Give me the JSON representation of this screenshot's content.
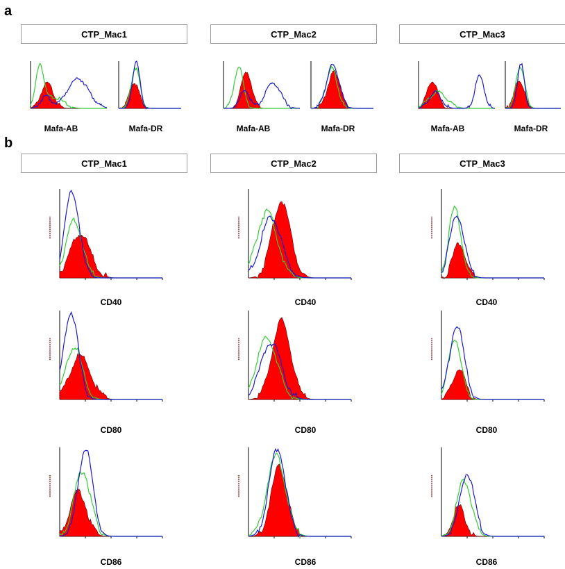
{
  "panels": {
    "a": {
      "letter": "a",
      "headers": [
        "CTP_Mac1",
        "CTP_Mac2",
        "CTP_Mac3"
      ],
      "markers": [
        "Mafa-AB",
        "Mafa-DR"
      ]
    },
    "b": {
      "letter": "b",
      "headers": [
        "CTP_Mac1",
        "CTP_Mac2",
        "CTP_Mac3"
      ],
      "markers": [
        "CD40",
        "CD80",
        "CD86"
      ]
    }
  },
  "colors": {
    "isotype_fill": "#ff0000",
    "green_line": "#33cc33",
    "blue_line": "#1a1acc",
    "axis": "#000000",
    "ylabel": "#8a2a2a"
  },
  "chart_data": [
    {
      "panel": "a",
      "type": "area",
      "x_scale": "log",
      "x_range": [
        0,
        1
      ],
      "plots": [
        {
          "sample": "CTP_Mac1",
          "marker": "Mafa-AB",
          "red": {
            "mu": 0.22,
            "sd": 0.08,
            "amp": 0.55
          },
          "green": [
            {
              "mu": 0.12,
              "sd": 0.05,
              "amp": 0.9
            },
            {
              "mu": 0.3,
              "sd": 0.12,
              "amp": 0.25
            }
          ],
          "blue": [
            {
              "mu": 0.2,
              "sd": 0.07,
              "amp": 0.25
            },
            {
              "mu": 0.62,
              "sd": 0.14,
              "amp": 0.65
            }
          ]
        },
        {
          "sample": "CTP_Mac1",
          "marker": "Mafa-DR",
          "red": {
            "mu": 0.25,
            "sd": 0.08,
            "amp": 0.55
          },
          "green": [
            {
              "mu": 0.27,
              "sd": 0.07,
              "amp": 0.88
            }
          ],
          "blue": [
            {
              "mu": 0.28,
              "sd": 0.06,
              "amp": 1.0
            }
          ]
        },
        {
          "sample": "CTP_Mac2",
          "marker": "Mafa-AB",
          "red": {
            "mu": 0.3,
            "sd": 0.07,
            "amp": 0.8
          },
          "green": [
            {
              "mu": 0.2,
              "sd": 0.06,
              "amp": 0.9
            }
          ],
          "blue": [
            {
              "mu": 0.28,
              "sd": 0.06,
              "amp": 0.4
            },
            {
              "mu": 0.65,
              "sd": 0.1,
              "amp": 0.55
            }
          ]
        },
        {
          "sample": "CTP_Mac2",
          "marker": "Mafa-DR",
          "red": {
            "mu": 0.37,
            "sd": 0.1,
            "amp": 0.8
          },
          "green": [
            {
              "mu": 0.33,
              "sd": 0.09,
              "amp": 0.88
            }
          ],
          "blue": [
            {
              "mu": 0.35,
              "sd": 0.1,
              "amp": 0.95
            }
          ]
        },
        {
          "sample": "CTP_Mac3",
          "marker": "Mafa-AB",
          "red": {
            "mu": 0.18,
            "sd": 0.07,
            "amp": 0.6
          },
          "green": [
            {
              "mu": 0.25,
              "sd": 0.12,
              "amp": 0.35
            }
          ],
          "blue": [
            {
              "mu": 0.22,
              "sd": 0.08,
              "amp": 0.35
            },
            {
              "mu": 0.8,
              "sd": 0.06,
              "amp": 0.7
            }
          ]
        },
        {
          "sample": "CTP_Mac3",
          "marker": "Mafa-DR",
          "red": {
            "mu": 0.25,
            "sd": 0.09,
            "amp": 0.6
          },
          "green": [
            {
              "mu": 0.27,
              "sd": 0.08,
              "amp": 0.9
            }
          ],
          "blue": [
            {
              "mu": 0.28,
              "sd": 0.06,
              "amp": 1.0
            }
          ]
        }
      ]
    },
    {
      "panel": "b",
      "type": "area",
      "x_scale": "log",
      "x_range": [
        0,
        1
      ],
      "plots": [
        {
          "sample": "CTP_Mac1",
          "marker": "CD40",
          "red": {
            "mu": 0.2,
            "sd": 0.1,
            "amp": 0.5
          },
          "green": [
            {
              "mu": 0.14,
              "sd": 0.08,
              "amp": 0.65
            }
          ],
          "blue": [
            {
              "mu": 0.12,
              "sd": 0.07,
              "amp": 1.0
            }
          ]
        },
        {
          "sample": "CTP_Mac2",
          "marker": "CD40",
          "red": {
            "mu": 0.32,
            "sd": 0.09,
            "amp": 0.88
          },
          "green": [
            {
              "mu": 0.18,
              "sd": 0.1,
              "amp": 0.75
            }
          ],
          "blue": [
            {
              "mu": 0.22,
              "sd": 0.1,
              "amp": 0.7
            }
          ]
        },
        {
          "sample": "CTP_Mac3",
          "marker": "CD40",
          "red": {
            "mu": 0.17,
            "sd": 0.06,
            "amp": 0.4
          },
          "green": [
            {
              "mu": 0.13,
              "sd": 0.06,
              "amp": 0.8
            }
          ],
          "blue": [
            {
              "mu": 0.15,
              "sd": 0.07,
              "amp": 0.72
            }
          ]
        },
        {
          "sample": "CTP_Mac1",
          "marker": "CD80",
          "red": {
            "mu": 0.2,
            "sd": 0.1,
            "amp": 0.5
          },
          "green": [
            {
              "mu": 0.14,
              "sd": 0.08,
              "amp": 0.6
            }
          ],
          "blue": [
            {
              "mu": 0.11,
              "sd": 0.07,
              "amp": 1.0
            }
          ]
        },
        {
          "sample": "CTP_Mac2",
          "marker": "CD80",
          "red": {
            "mu": 0.32,
            "sd": 0.09,
            "amp": 0.9
          },
          "green": [
            {
              "mu": 0.18,
              "sd": 0.1,
              "amp": 0.7
            }
          ],
          "blue": [
            {
              "mu": 0.22,
              "sd": 0.1,
              "amp": 0.65
            }
          ]
        },
        {
          "sample": "CTP_Mac3",
          "marker": "CD80",
          "red": {
            "mu": 0.17,
            "sd": 0.06,
            "amp": 0.35
          },
          "green": [
            {
              "mu": 0.13,
              "sd": 0.06,
              "amp": 0.7
            }
          ],
          "blue": [
            {
              "mu": 0.15,
              "sd": 0.07,
              "amp": 0.85
            }
          ]
        },
        {
          "sample": "CTP_Mac1",
          "marker": "CD86",
          "red": {
            "mu": 0.18,
            "sd": 0.08,
            "amp": 0.52
          },
          "green": [
            {
              "mu": 0.22,
              "sd": 0.08,
              "amp": 0.75
            }
          ],
          "blue": [
            {
              "mu": 0.25,
              "sd": 0.07,
              "amp": 1.0
            }
          ]
        },
        {
          "sample": "CTP_Mac2",
          "marker": "CD86",
          "red": {
            "mu": 0.3,
            "sd": 0.08,
            "amp": 0.8
          },
          "green": [
            {
              "mu": 0.27,
              "sd": 0.09,
              "amp": 0.92
            }
          ],
          "blue": [
            {
              "mu": 0.28,
              "sd": 0.08,
              "amp": 1.0
            }
          ]
        },
        {
          "sample": "CTP_Mac3",
          "marker": "CD86",
          "red": {
            "mu": 0.17,
            "sd": 0.06,
            "amp": 0.35
          },
          "green": [
            {
              "mu": 0.22,
              "sd": 0.07,
              "amp": 0.65
            }
          ],
          "blue": [
            {
              "mu": 0.25,
              "sd": 0.07,
              "amp": 0.72
            }
          ]
        }
      ]
    }
  ]
}
